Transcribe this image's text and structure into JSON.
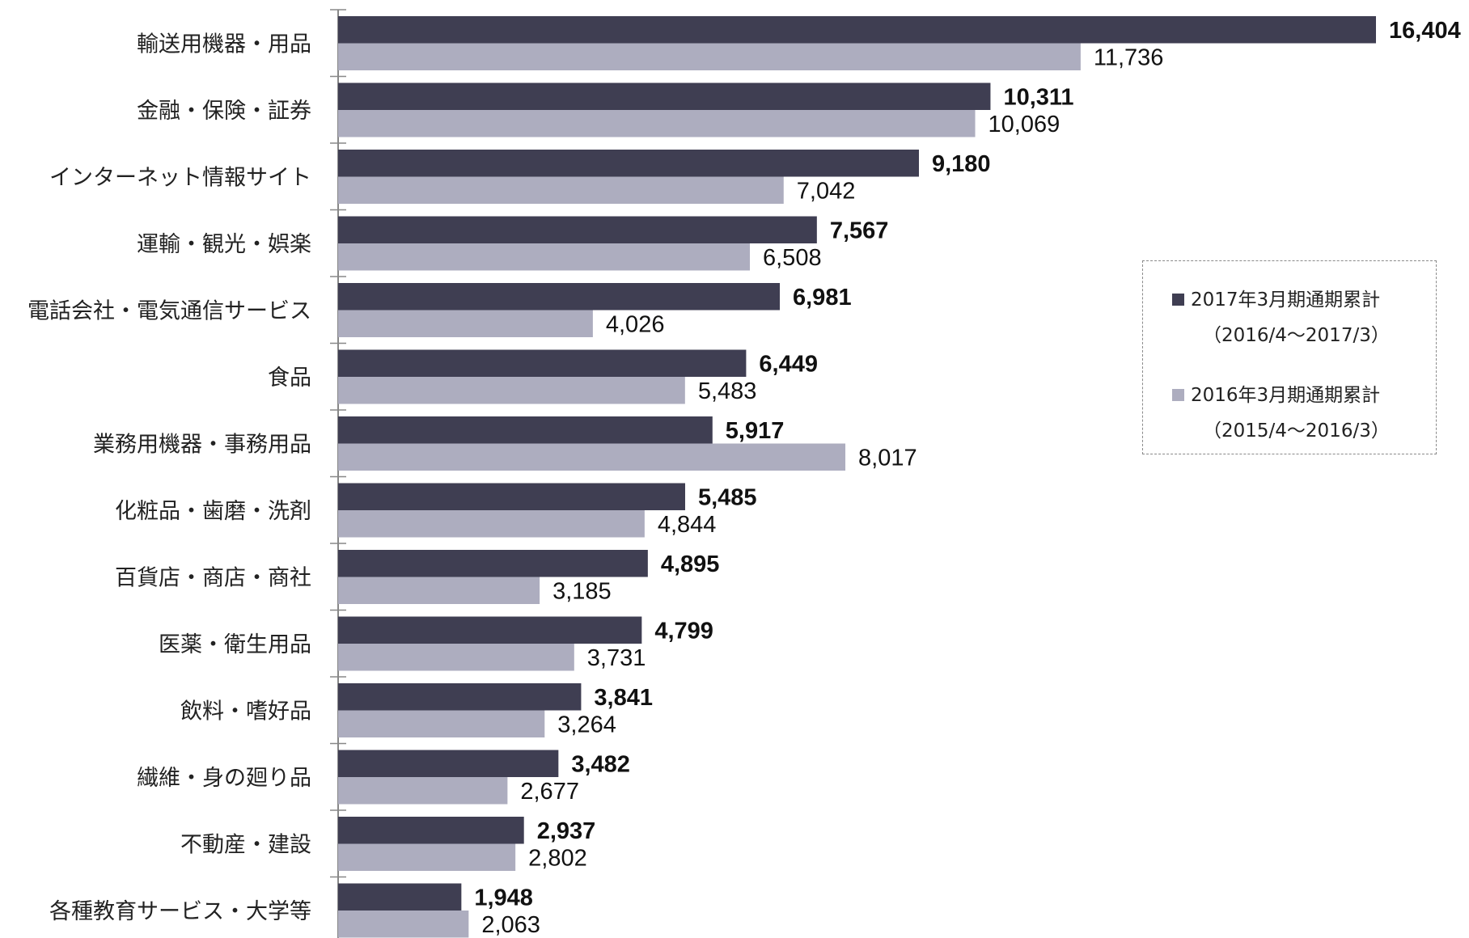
{
  "chart_data": {
    "type": "bar",
    "orientation": "horizontal",
    "categories": [
      "輸送用機器・用品",
      "金融・保険・証券",
      "インターネット情報サイト",
      "運輸・観光・娯楽",
      "電話会社・電気通信サービス",
      "食品",
      "業務用機器・事務用品",
      "化粧品・歯磨・洗剤",
      "百貨店・商店・商社",
      "医薬・衛生用品",
      "飲料・嗜好品",
      "繊維・身の廻り品",
      "不動産・建設",
      "各種教育サービス・大学等"
    ],
    "series": [
      {
        "name": "2017年3月期通期累計",
        "period": "（2016/4～2017/3）",
        "color": "#3f3e52",
        "values": [
          16404,
          10311,
          9180,
          7567,
          6981,
          6449,
          5917,
          5485,
          4895,
          4799,
          3841,
          3482,
          2937,
          1948
        ],
        "labels": [
          "16,404",
          "10,311",
          "9,180",
          "7,567",
          "6,981",
          "6,449",
          "5,917",
          "5,485",
          "4,895",
          "4,799",
          "3,841",
          "3,482",
          "2,937",
          "1,948"
        ]
      },
      {
        "name": "2016年3月期通期累計",
        "period": "（2015/4～2016/3）",
        "color": "#adadbf",
        "values": [
          11736,
          10069,
          7042,
          6508,
          4026,
          5483,
          8017,
          4844,
          3185,
          3731,
          3264,
          2677,
          2802,
          2063
        ],
        "labels": [
          "11,736",
          "10,069",
          "7,042",
          "6,508",
          "4,026",
          "5,483",
          "8,017",
          "4,844",
          "3,185",
          "3,731",
          "3,264",
          "2,677",
          "2,802",
          "2,063"
        ]
      }
    ],
    "xlim": [
      0,
      16404
    ],
    "grid": false,
    "legend_position": "right"
  }
}
